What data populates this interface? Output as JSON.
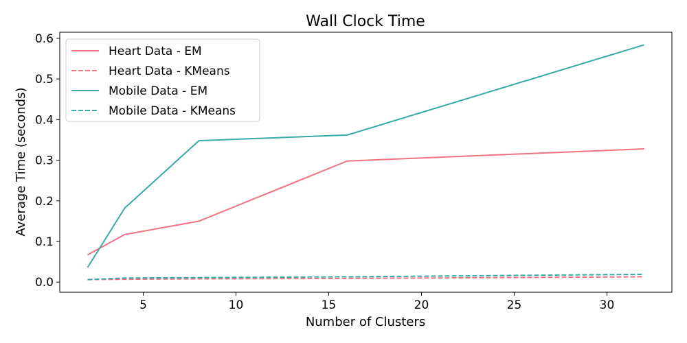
{
  "chart_data": {
    "type": "line",
    "title": "Wall Clock Time",
    "xlabel": "Number of Clusters",
    "ylabel": "Average Time (seconds)",
    "xlim": [
      0.5,
      33.5
    ],
    "ylim": [
      -0.025,
      0.615
    ],
    "xticks": [
      5,
      10,
      15,
      20,
      25,
      30
    ],
    "yticks": [
      0.0,
      0.1,
      0.2,
      0.3,
      0.4,
      0.5,
      0.6
    ],
    "grid": false,
    "legend_position": "upper-left",
    "series": [
      {
        "name": "Heart Data - EM",
        "color": "#f07284",
        "dash": "solid",
        "x": [
          2,
          4,
          8,
          16,
          32
        ],
        "y": [
          0.067,
          0.117,
          0.15,
          0.298,
          0.328
        ]
      },
      {
        "name": "Heart Data - KMeans",
        "color": "#f07284",
        "dash": "dashed",
        "x": [
          2,
          4,
          8,
          16,
          32
        ],
        "y": [
          0.006,
          0.007,
          0.008,
          0.009,
          0.013
        ]
      },
      {
        "name": "Mobile Data - EM",
        "color": "#36aba6",
        "dash": "solid",
        "x": [
          2,
          4,
          8,
          16,
          32
        ],
        "y": [
          0.036,
          0.182,
          0.348,
          0.362,
          0.584
        ]
      },
      {
        "name": "Mobile Data - KMeans",
        "color": "#36aba6",
        "dash": "dashed",
        "x": [
          2,
          4,
          8,
          16,
          32
        ],
        "y": [
          0.006,
          0.01,
          0.011,
          0.013,
          0.019
        ]
      }
    ]
  }
}
